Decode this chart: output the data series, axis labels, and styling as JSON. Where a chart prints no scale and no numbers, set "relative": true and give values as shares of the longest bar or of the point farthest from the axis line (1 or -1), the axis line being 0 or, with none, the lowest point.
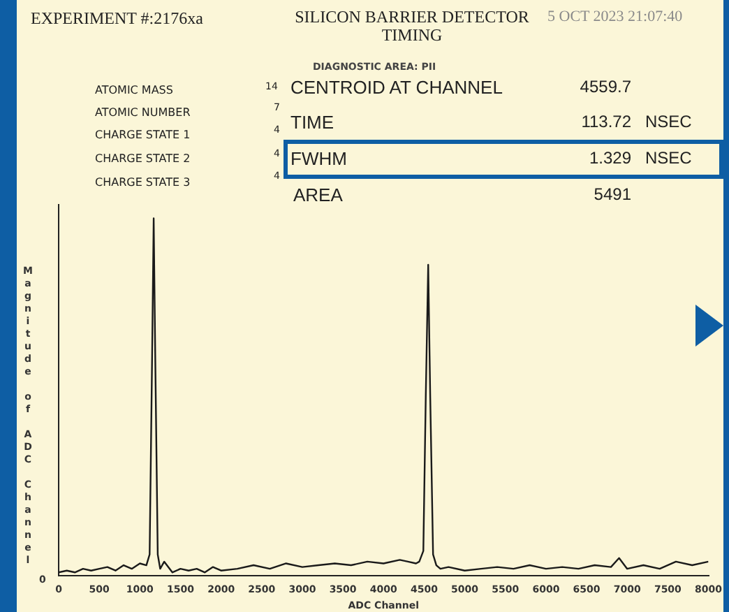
{
  "chart_data": {
    "type": "line",
    "title": "EXPERIMENT #:2176xa",
    "subtitle": "SILICON BARRIER DETECTOR TIMING",
    "xlabel": "ADC Channel",
    "ylabel": "Magnitude of ADC Channel",
    "annotations": [
      "5 OCT 2023 21:07:40",
      "DIAGNOSTIC AREA: PII",
      "ATOMIC MASS",
      "ATOMIC NUMBER",
      "CHARGE STATE 1",
      "CHARGE STATE 2",
      "CHARGE STATE 3",
      "14",
      "7",
      "4",
      "4",
      "4",
      "CENTROID AT CHANNEL",
      "TIME",
      "FWHM",
      "AREA",
      "4559.7",
      "113.72",
      "1.329",
      "5491",
      "NSEC",
      "NSEC",
      "0"
    ],
    "relative": true,
    "xlim": [
      0,
      8000
    ],
    "xticks": [
      0,
      500,
      1000,
      1500,
      2000,
      2500,
      3000,
      3500,
      4000,
      4500,
      5000,
      5500,
      6000,
      6500,
      7000,
      7500,
      8000
    ],
    "grid": false,
    "legend": false,
    "marker": "none",
    "line_style": "solid",
    "series": [
      {
        "color": "#1a1a1a",
        "x": [
          0,
          100,
          200,
          300,
          400,
          500,
          600,
          700,
          800,
          900,
          1000,
          1080,
          1120,
          1150,
          1170,
          1190,
          1220,
          1250,
          1300,
          1400,
          1500,
          1600,
          1700,
          1800,
          1900,
          2000,
          2200,
          2400,
          2600,
          2800,
          3000,
          3200,
          3400,
          3600,
          3800,
          4000,
          4200,
          4300,
          4400,
          4440,
          4490,
          4520,
          4550,
          4575,
          4610,
          4650,
          4700,
          4800,
          5000,
          5200,
          5400,
          5600,
          5800,
          6000,
          6200,
          6400,
          6600,
          6800,
          6900,
          7000,
          7200,
          7400,
          7600,
          7800,
          8000
        ],
        "values": [
          0.01,
          0.015,
          0.01,
          0.02,
          0.015,
          0.02,
          0.025,
          0.015,
          0.03,
          0.02,
          0.035,
          0.03,
          0.06,
          0.6,
          1.0,
          0.6,
          0.06,
          0.02,
          0.04,
          0.01,
          0.02,
          0.015,
          0.02,
          0.01,
          0.025,
          0.015,
          0.02,
          0.03,
          0.02,
          0.035,
          0.025,
          0.03,
          0.035,
          0.03,
          0.04,
          0.035,
          0.045,
          0.04,
          0.035,
          0.04,
          0.07,
          0.5,
          0.87,
          0.5,
          0.06,
          0.03,
          0.02,
          0.025,
          0.015,
          0.02,
          0.025,
          0.02,
          0.03,
          0.02,
          0.025,
          0.02,
          0.03,
          0.025,
          0.05,
          0.02,
          0.03,
          0.02,
          0.04,
          0.03,
          0.04
        ]
      }
    ]
  }
}
